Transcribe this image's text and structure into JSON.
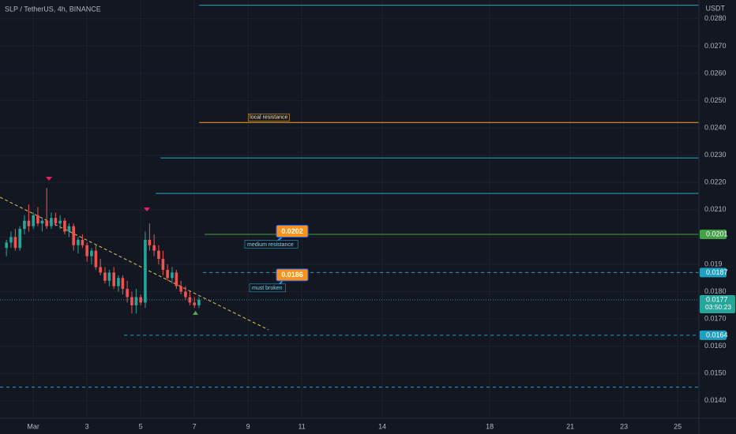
{
  "chart_data": {
    "type": "candlestick",
    "title": "SLP / TetherUS, 4h, BINANCE",
    "unit": "USDT",
    "up_color": "#26a69a",
    "down_color": "#ef5350",
    "grid": true,
    "xlim": [
      -0.24,
      25.79
    ],
    "ylim": [
      0.01336,
      0.02869
    ],
    "xticks": [
      {
        "value": 1,
        "label": "Mar"
      },
      3,
      5,
      7,
      9,
      11,
      14,
      18,
      21,
      23,
      25
    ],
    "yticks": [
      {
        "value": 0.014,
        "label": "0.0140"
      },
      {
        "value": 0.015,
        "label": "0.0150"
      },
      {
        "value": 0.016,
        "label": "0.0160"
      },
      {
        "value": 0.017,
        "label": "0.0170"
      },
      {
        "value": 0.018,
        "label": "0.0180"
      },
      0.019,
      {
        "value": 0.02,
        "label": "0.0200"
      },
      {
        "value": 0.021,
        "label": "0.0210"
      },
      {
        "value": 0.022,
        "label": "0.0220"
      },
      {
        "value": 0.023,
        "label": "0.0230"
      },
      {
        "value": 0.024,
        "label": "0.0240"
      },
      {
        "value": 0.025,
        "label": "0.0250"
      },
      {
        "value": 0.026,
        "label": "0.0260"
      },
      {
        "value": 0.027,
        "label": "0.0270"
      },
      {
        "value": 0.028,
        "label": "0.0280"
      }
    ],
    "x": [
      0,
      0.17,
      0.33,
      0.5,
      0.67,
      0.83,
      1,
      1.17,
      1.33,
      1.5,
      1.67,
      1.83,
      2,
      2.17,
      2.33,
      2.5,
      2.67,
      2.83,
      3,
      3.17,
      3.33,
      3.5,
      3.67,
      3.83,
      4,
      4.17,
      4.33,
      4.5,
      4.67,
      4.83,
      5,
      5.17,
      5.33,
      5.5,
      5.67,
      5.83,
      6,
      6.17,
      6.33,
      6.5,
      6.67,
      6.83,
      7,
      7.17
    ],
    "open": [
      0.0196,
      0.0198,
      0.02,
      0.0196,
      0.0203,
      0.0206,
      0.0204,
      0.0208,
      0.0205,
      0.0206,
      0.0204,
      0.0207,
      0.0205,
      0.0206,
      0.0202,
      0.0204,
      0.0197,
      0.0199,
      0.0197,
      0.0193,
      0.0195,
      0.0189,
      0.0187,
      0.0184,
      0.0187,
      0.0182,
      0.0185,
      0.0181,
      0.0178,
      0.0175,
      0.0178,
      0.0176,
      0.0199,
      0.0197,
      0.0195,
      0.0192,
      0.0188,
      0.0185,
      0.0187,
      0.0182,
      0.018,
      0.0178,
      0.0176,
      0.0175
    ],
    "high": [
      0.0199,
      0.0202,
      0.0203,
      0.0204,
      0.0208,
      0.0212,
      0.0209,
      0.0211,
      0.0207,
      0.0218,
      0.0209,
      0.0209,
      0.0208,
      0.0207,
      0.0205,
      0.0205,
      0.02,
      0.0201,
      0.0198,
      0.0196,
      0.0197,
      0.0192,
      0.0189,
      0.0188,
      0.0189,
      0.0186,
      0.0186,
      0.0184,
      0.018,
      0.0181,
      0.0179,
      0.0202,
      0.0205,
      0.0201,
      0.0197,
      0.0195,
      0.019,
      0.0189,
      0.0188,
      0.0184,
      0.0182,
      0.018,
      0.0178,
      0.0178
    ],
    "low": [
      0.0193,
      0.0196,
      0.0195,
      0.0195,
      0.0201,
      0.0202,
      0.0203,
      0.0204,
      0.0202,
      0.0203,
      0.0203,
      0.0204,
      0.0203,
      0.0201,
      0.02,
      0.0195,
      0.0194,
      0.0196,
      0.0191,
      0.019,
      0.0188,
      0.0186,
      0.0183,
      0.0182,
      0.0181,
      0.018,
      0.0179,
      0.0176,
      0.0172,
      0.0172,
      0.0175,
      0.0174,
      0.0195,
      0.0193,
      0.019,
      0.0186,
      0.0184,
      0.0183,
      0.0181,
      0.0179,
      0.0177,
      0.0175,
      0.0174,
      0.0174
    ],
    "close": [
      0.0198,
      0.02,
      0.0196,
      0.0203,
      0.0206,
      0.0204,
      0.0208,
      0.0205,
      0.0206,
      0.0204,
      0.0207,
      0.0205,
      0.0206,
      0.0202,
      0.0204,
      0.0197,
      0.0199,
      0.0197,
      0.0193,
      0.0195,
      0.0189,
      0.0187,
      0.0184,
      0.0187,
      0.0182,
      0.0185,
      0.0181,
      0.0178,
      0.0175,
      0.0178,
      0.0176,
      0.0199,
      0.0197,
      0.0195,
      0.0192,
      0.0188,
      0.0185,
      0.0187,
      0.0182,
      0.018,
      0.0178,
      0.0176,
      0.0175,
      0.0177
    ],
    "levels": [
      {
        "value": 0.0285,
        "start": 7.18,
        "color": "#22a7c4",
        "dash": false
      },
      {
        "value": 0.0242,
        "start": 7.18,
        "color": "#f5a623",
        "dash": false,
        "label": "local resistance"
      },
      {
        "value": 0.0229,
        "start": 5.74,
        "color": "#22a7c4",
        "dash": false
      },
      {
        "value": 0.0216,
        "start": 5.56,
        "color": "#22a7c4",
        "dash": false
      },
      {
        "value": 0.0201,
        "start": 7.38,
        "color": "#43a047",
        "dash": false
      },
      {
        "value": 0.0187,
        "start": 7.32,
        "color": "#22a7c4",
        "dash": true
      },
      {
        "value": 0.0164,
        "start": 4.38,
        "color": "#22a7c4",
        "dash": true
      },
      {
        "value": 0.0145,
        "start": -0.24,
        "color": "#22a7c4",
        "dash": true
      }
    ],
    "trendline": {
      "x": [
        -0.24,
        9.76
      ],
      "y": [
        0.02146,
        0.0166
      ],
      "color": "#e0c45a"
    },
    "callouts": [
      {
        "value": 0.0202,
        "text": "medium resistance"
      },
      {
        "value": 0.0186,
        "text": "must broken"
      }
    ],
    "axis_tags": [
      {
        "value": 0.0201,
        "color": "#43a047"
      },
      {
        "value": 0.0187,
        "color": "#1e9fbf"
      },
      {
        "value": 0.0164,
        "color": "#1e9fbf"
      }
    ],
    "last_price": {
      "value": 0.0177,
      "countdown": "03:50:23",
      "color": "#26a69a"
    }
  }
}
